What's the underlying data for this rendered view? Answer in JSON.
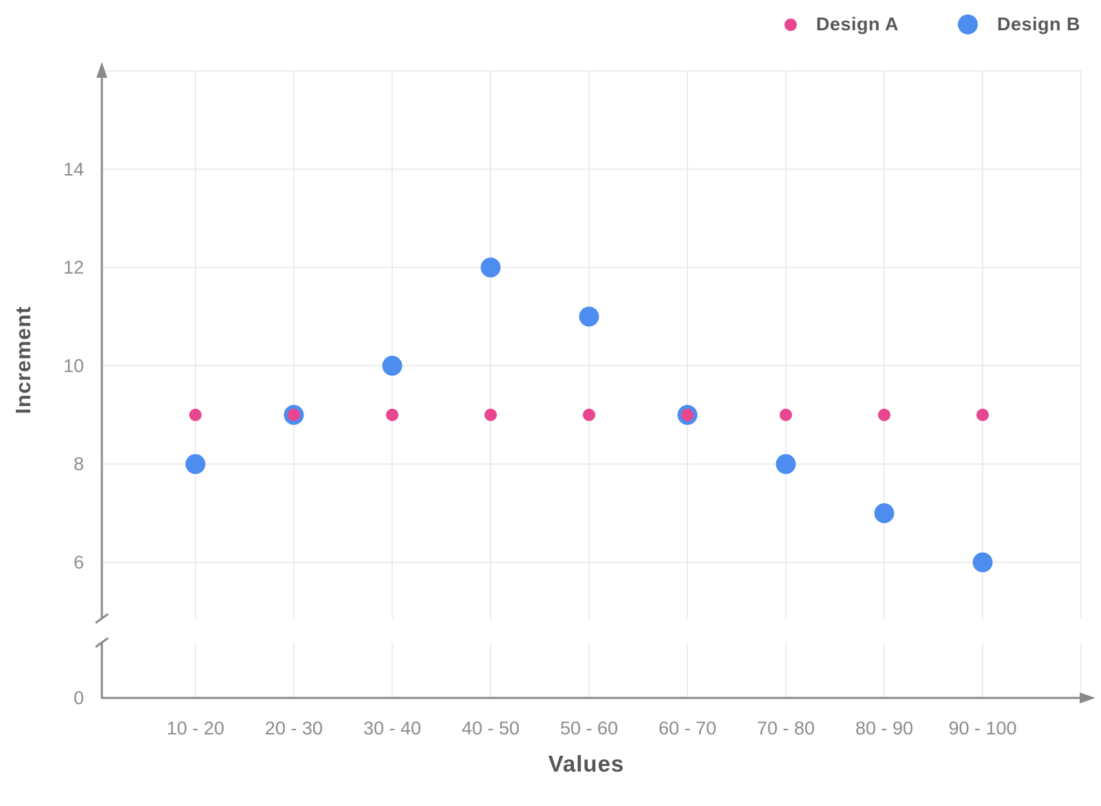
{
  "chart_data": {
    "type": "scatter",
    "title": "",
    "xlabel": "Values",
    "ylabel": "Increment",
    "categories": [
      "10 - 20",
      "20 - 30",
      "30 - 40",
      "40 - 50",
      "50 - 60",
      "60 - 70",
      "70 - 80",
      "80 - 90",
      "90 - 100"
    ],
    "series": [
      {
        "name": "Design A",
        "color": "#e8478f",
        "marker_radius": 9,
        "values": [
          9,
          9,
          9,
          9,
          9,
          9,
          9,
          9,
          9
        ]
      },
      {
        "name": "Design B",
        "color": "#4d8df0",
        "marker_radius": 14.5,
        "values": [
          8,
          9,
          10,
          12,
          11,
          9,
          8,
          7,
          6
        ]
      }
    ],
    "y_axis": {
      "labeled_ticks": [
        0,
        6,
        8,
        10,
        12,
        14
      ],
      "gridline_values": [
        6,
        8,
        10,
        12,
        14,
        16
      ],
      "axis_break_between": [
        0,
        6
      ],
      "upper_segment_range": [
        6,
        16
      ]
    },
    "x_axis": {
      "extra_right_gridline": true
    },
    "grid": true,
    "legend_position": "top-right"
  },
  "styles": {
    "axis_color": "#8a8a8a",
    "grid_color": "#ececec",
    "tick_label_color": "#8c8c8c",
    "title_color": "#565656"
  }
}
